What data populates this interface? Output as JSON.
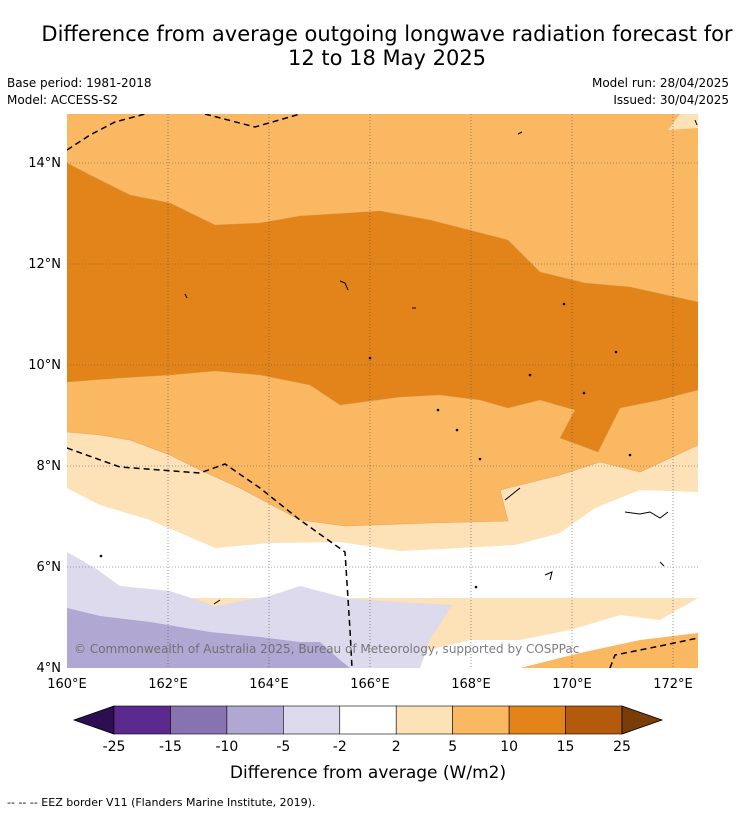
{
  "title": {
    "line1": "Difference from average outgoing longwave radiation forecast for",
    "line2": "12 to 18 May 2025"
  },
  "meta": {
    "base_period": "Base period: 1981-2018",
    "model": "Model: ACCESS-S2",
    "model_run": "Model run: 28/04/2025",
    "issued": "Issued: 30/04/2025"
  },
  "map": {
    "lon_range": [
      160,
      172.5
    ],
    "lat_range": [
      4,
      15
    ],
    "lon_ticks": [
      "160°E",
      "162°E",
      "164°E",
      "166°E",
      "168°E",
      "170°E",
      "172°E"
    ],
    "lat_ticks": [
      "4°N",
      "6°N",
      "8°N",
      "10°N",
      "12°N",
      "14°N"
    ],
    "attribution": "© Commonwealth of Australia 2025, Bureau of Meteorology, supported by COSPPac"
  },
  "colorbar": {
    "tick_labels": [
      "-25",
      "-15",
      "-10",
      "-5",
      "-2",
      "2",
      "5",
      "10",
      "15",
      "25"
    ],
    "colors": [
      "#2e0e52",
      "#5c2a8e",
      "#8673b0",
      "#b0a8d2",
      "#dcdaec",
      "#ffffff",
      "#fde1b7",
      "#fbb862",
      "#e2841a",
      "#b35a0c",
      "#7a3d08"
    ],
    "label": "Difference from average (W/m2)"
  },
  "footer": {
    "legend_text": "--  --  -- EEZ border V11 (Flanders Marine Institute, 2019)."
  }
}
